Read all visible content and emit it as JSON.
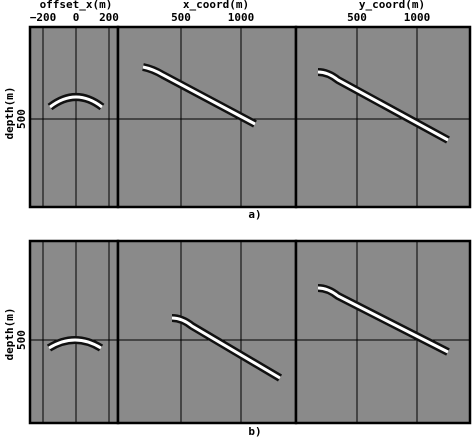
{
  "figures": [
    {
      "caption": "a)",
      "y_label": "depth(m)",
      "y_tick": "500",
      "panels": [
        {
          "label": "offset_x(m)",
          "ticks": [
            "−200",
            "0",
            "200"
          ]
        },
        {
          "label": "x_coord(m)",
          "ticks": [
            "500",
            "1000"
          ]
        },
        {
          "label": "y_coord(m)",
          "ticks": [
            "500",
            "1000"
          ]
        }
      ]
    },
    {
      "caption": "b)",
      "y_label": "depth(m)",
      "y_tick": "500"
    }
  ]
}
